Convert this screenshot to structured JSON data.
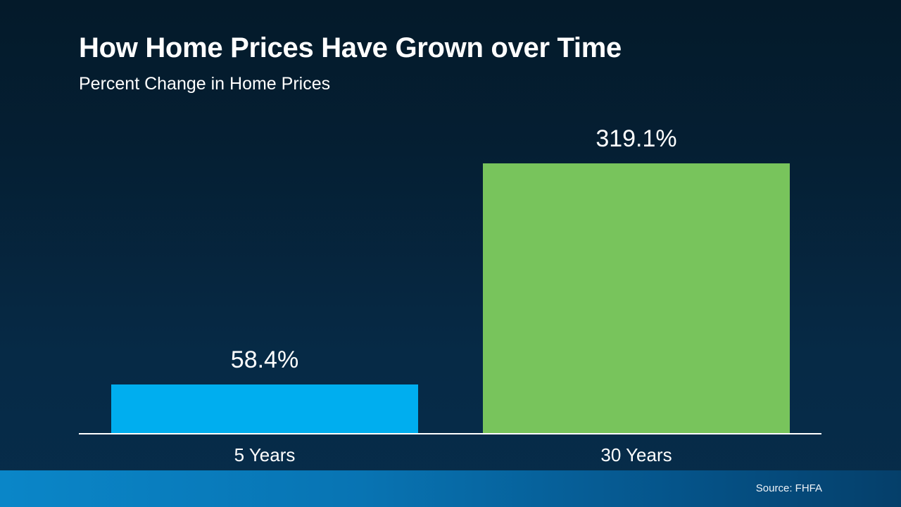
{
  "header": {
    "title": "How Home Prices Have Grown over Time",
    "subtitle": "Percent Change in Home Prices"
  },
  "footer": {
    "source": "Source: FHFA"
  },
  "colors": {
    "background": "#051f33",
    "bar_5_years": "#00aeef",
    "bar_30_years": "#78c45c",
    "footer_band": "#0a86c8"
  },
  "chart_data": {
    "type": "bar",
    "title": "How Home Prices Have Grown over Time",
    "subtitle": "Percent Change in Home Prices",
    "categories": [
      "5 Years",
      "30 Years"
    ],
    "values": [
      58.4,
      319.1
    ],
    "value_labels": [
      "58.4%",
      "319.1%"
    ],
    "xlabel": "",
    "ylabel": "Percent Change in Home Prices",
    "ylim": [
      0,
      380
    ],
    "grid": false,
    "legend": "none",
    "source": "Source: FHFA"
  }
}
